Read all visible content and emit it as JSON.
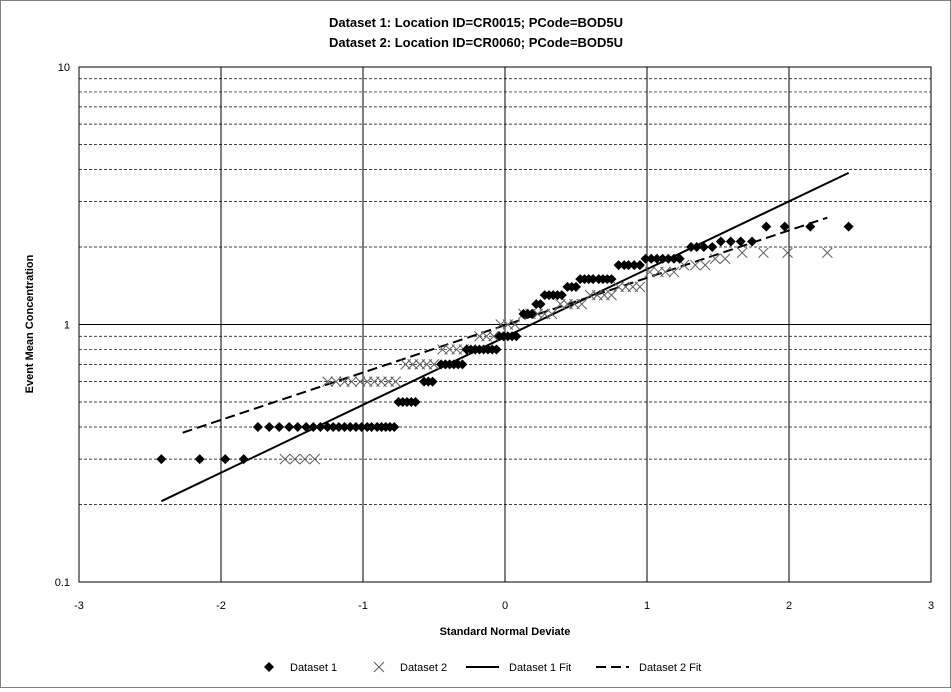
{
  "chart_data": {
    "type": "scatter",
    "title_lines": [
      "Dataset 1: Location ID=CR0015; PCode=BOD5U",
      "Dataset 2: Location ID=CR0060; PCode=BOD5U"
    ],
    "xlabel": "Standard Normal Deviate",
    "ylabel": "Event Mean Concentration",
    "xlim": [
      -3,
      3
    ],
    "ylim": [
      0.1,
      10
    ],
    "y_scale": "log",
    "x_ticks": [
      "-3",
      "-2",
      "-1",
      "0",
      "1",
      "2",
      "3"
    ],
    "y_ticks": [
      "0.1",
      "1",
      "10"
    ],
    "grid": true,
    "legend_position": "bottom",
    "legend": [
      "Dataset 1",
      "Dataset 2",
      "Dataset 1 Fit",
      "Dataset 2 Fit"
    ],
    "series": [
      {
        "name": "Dataset 1",
        "marker": "diamond",
        "points": [
          [
            -2.42,
            0.3
          ],
          [
            -2.15,
            0.3
          ],
          [
            -1.97,
            0.3
          ],
          [
            -1.84,
            0.3
          ],
          [
            -1.74,
            0.4
          ],
          [
            -1.66,
            0.4
          ],
          [
            -1.59,
            0.4
          ],
          [
            -1.52,
            0.4
          ],
          [
            -1.46,
            0.4
          ],
          [
            -1.4,
            0.4
          ],
          [
            -1.35,
            0.4
          ],
          [
            -1.3,
            0.4
          ],
          [
            -1.25,
            0.4
          ],
          [
            -1.21,
            0.4
          ],
          [
            -1.17,
            0.4
          ],
          [
            -1.13,
            0.4
          ],
          [
            -1.09,
            0.4
          ],
          [
            -1.05,
            0.4
          ],
          [
            -1.01,
            0.4
          ],
          [
            -0.97,
            0.4
          ],
          [
            -0.94,
            0.4
          ],
          [
            -0.9,
            0.4
          ],
          [
            -0.87,
            0.4
          ],
          [
            -0.84,
            0.4
          ],
          [
            -0.81,
            0.4
          ],
          [
            -0.78,
            0.4
          ],
          [
            -0.75,
            0.5
          ],
          [
            -0.72,
            0.5
          ],
          [
            -0.69,
            0.5
          ],
          [
            -0.66,
            0.5
          ],
          [
            -0.63,
            0.5
          ],
          [
            -0.57,
            0.6
          ],
          [
            -0.54,
            0.6
          ],
          [
            -0.51,
            0.6
          ],
          [
            -0.45,
            0.7
          ],
          [
            -0.42,
            0.7
          ],
          [
            -0.39,
            0.7
          ],
          [
            -0.36,
            0.7
          ],
          [
            -0.33,
            0.7
          ],
          [
            -0.3,
            0.7
          ],
          [
            -0.27,
            0.8
          ],
          [
            -0.24,
            0.8
          ],
          [
            -0.21,
            0.8
          ],
          [
            -0.18,
            0.8
          ],
          [
            -0.15,
            0.8
          ],
          [
            -0.12,
            0.8
          ],
          [
            -0.09,
            0.8
          ],
          [
            -0.06,
            0.8
          ],
          [
            -0.04,
            0.9
          ],
          [
            -0.01,
            0.9
          ],
          [
            0.02,
            0.9
          ],
          [
            0.05,
            0.9
          ],
          [
            0.08,
            0.9
          ],
          [
            0.13,
            1.1
          ],
          [
            0.16,
            1.1
          ],
          [
            0.19,
            1.1
          ],
          [
            0.22,
            1.2
          ],
          [
            0.25,
            1.2
          ],
          [
            0.28,
            1.3
          ],
          [
            0.31,
            1.3
          ],
          [
            0.34,
            1.3
          ],
          [
            0.37,
            1.3
          ],
          [
            0.4,
            1.3
          ],
          [
            0.44,
            1.4
          ],
          [
            0.47,
            1.4
          ],
          [
            0.5,
            1.4
          ],
          [
            0.53,
            1.5
          ],
          [
            0.56,
            1.5
          ],
          [
            0.59,
            1.5
          ],
          [
            0.62,
            1.5
          ],
          [
            0.66,
            1.5
          ],
          [
            0.69,
            1.5
          ],
          [
            0.72,
            1.5
          ],
          [
            0.75,
            1.5
          ],
          [
            0.8,
            1.7
          ],
          [
            0.84,
            1.7
          ],
          [
            0.87,
            1.7
          ],
          [
            0.91,
            1.7
          ],
          [
            0.95,
            1.7
          ],
          [
            0.99,
            1.8
          ],
          [
            1.03,
            1.8
          ],
          [
            1.07,
            1.8
          ],
          [
            1.11,
            1.8
          ],
          [
            1.15,
            1.8
          ],
          [
            1.19,
            1.8
          ],
          [
            1.23,
            1.8
          ],
          [
            1.31,
            2.0
          ],
          [
            1.35,
            2.0
          ],
          [
            1.4,
            2.0
          ],
          [
            1.46,
            2.0
          ],
          [
            1.52,
            2.1
          ],
          [
            1.59,
            2.1
          ],
          [
            1.66,
            2.1
          ],
          [
            1.74,
            2.1
          ],
          [
            1.84,
            2.4
          ],
          [
            1.97,
            2.4
          ],
          [
            2.15,
            2.4
          ],
          [
            2.42,
            2.4
          ]
        ]
      },
      {
        "name": "Dataset 2",
        "marker": "x",
        "points": [
          [
            -1.55,
            0.3
          ],
          [
            -1.48,
            0.3
          ],
          [
            -1.41,
            0.3
          ],
          [
            -1.34,
            0.3
          ],
          [
            -1.25,
            0.6
          ],
          [
            -1.19,
            0.6
          ],
          [
            -1.13,
            0.6
          ],
          [
            -1.08,
            0.6
          ],
          [
            -1.02,
            0.6
          ],
          [
            -0.97,
            0.6
          ],
          [
            -0.92,
            0.6
          ],
          [
            -0.87,
            0.6
          ],
          [
            -0.82,
            0.6
          ],
          [
            -0.77,
            0.6
          ],
          [
            -0.7,
            0.7
          ],
          [
            -0.65,
            0.7
          ],
          [
            -0.6,
            0.7
          ],
          [
            -0.55,
            0.7
          ],
          [
            -0.5,
            0.7
          ],
          [
            -0.44,
            0.8
          ],
          [
            -0.39,
            0.8
          ],
          [
            -0.34,
            0.8
          ],
          [
            -0.29,
            0.8
          ],
          [
            -0.24,
            0.8
          ],
          [
            -0.18,
            0.9
          ],
          [
            -0.13,
            0.9
          ],
          [
            -0.08,
            0.9
          ],
          [
            -0.03,
            1.0
          ],
          [
            0.02,
            1.0
          ],
          [
            0.07,
            1.0
          ],
          [
            0.13,
            1.1
          ],
          [
            0.18,
            1.1
          ],
          [
            0.23,
            1.1
          ],
          [
            0.28,
            1.1
          ],
          [
            0.33,
            1.1
          ],
          [
            0.39,
            1.2
          ],
          [
            0.44,
            1.2
          ],
          [
            0.49,
            1.2
          ],
          [
            0.54,
            1.2
          ],
          [
            0.6,
            1.3
          ],
          [
            0.65,
            1.3
          ],
          [
            0.7,
            1.3
          ],
          [
            0.75,
            1.3
          ],
          [
            0.8,
            1.4
          ],
          [
            0.85,
            1.4
          ],
          [
            0.9,
            1.4
          ],
          [
            0.95,
            1.4
          ],
          [
            1.02,
            1.6
          ],
          [
            1.08,
            1.6
          ],
          [
            1.13,
            1.6
          ],
          [
            1.19,
            1.6
          ],
          [
            1.26,
            1.7
          ],
          [
            1.34,
            1.7
          ],
          [
            1.41,
            1.7
          ],
          [
            1.48,
            1.8
          ],
          [
            1.55,
            1.8
          ],
          [
            1.67,
            1.9
          ],
          [
            1.82,
            1.9
          ],
          [
            1.99,
            1.9
          ],
          [
            2.27,
            1.9
          ]
        ]
      },
      {
        "name": "Dataset 1 Fit",
        "style": "solid",
        "points": [
          [
            -2.42,
            0.206
          ],
          [
            2.42,
            3.88
          ]
        ]
      },
      {
        "name": "Dataset 2 Fit",
        "style": "dashed",
        "points": [
          [
            -2.27,
            0.38
          ],
          [
            2.27,
            2.6
          ]
        ]
      }
    ]
  }
}
